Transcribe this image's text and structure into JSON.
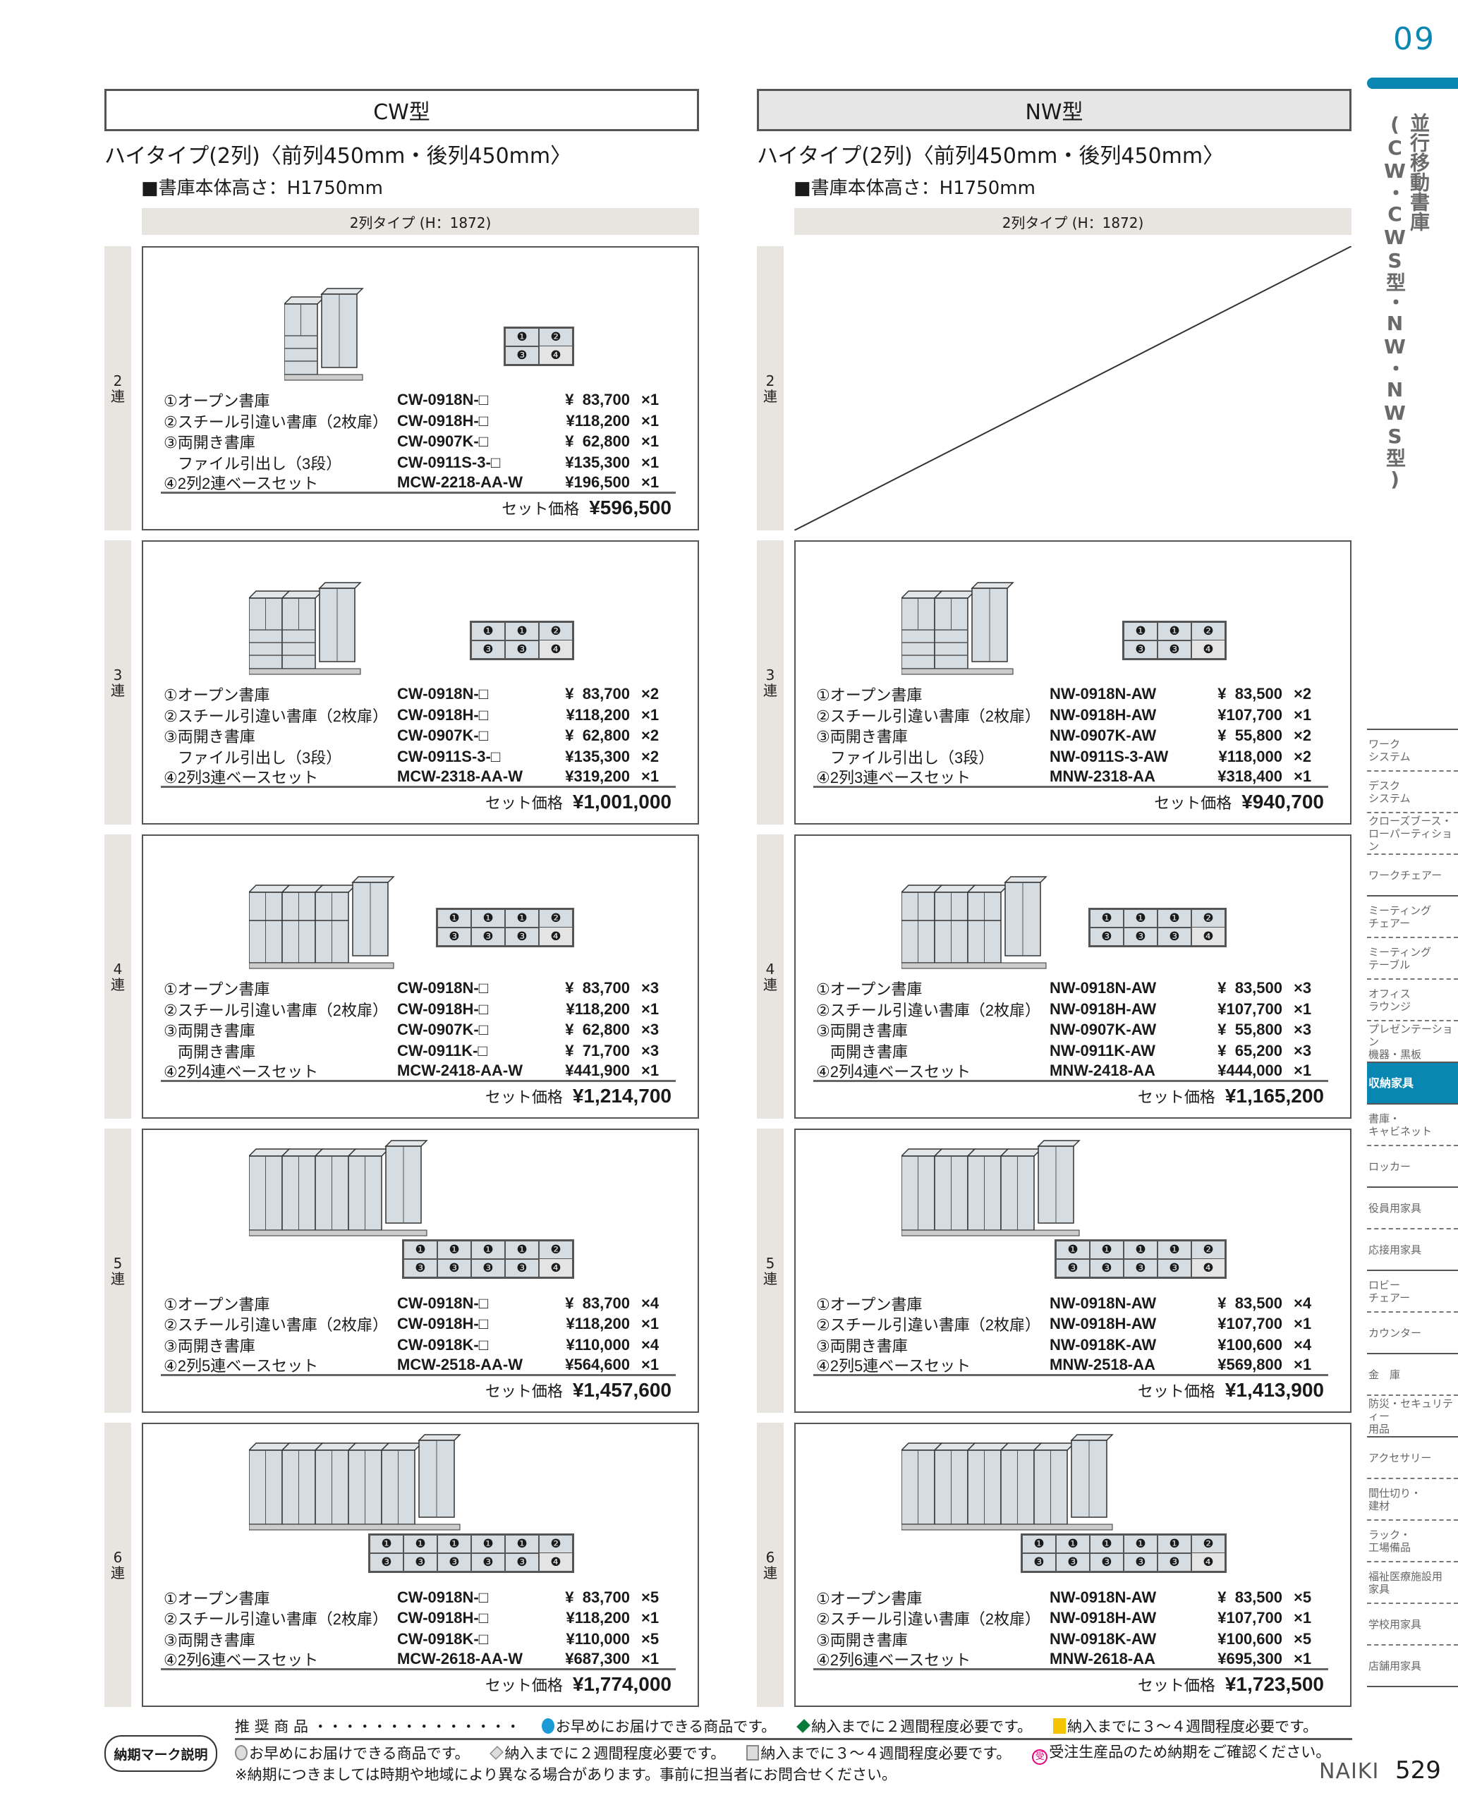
{
  "page": {
    "chapter_number": "09",
    "page_number": "529",
    "brand": "NAIKI"
  },
  "side_title": {
    "line1": "並行移動書庫",
    "line2": "(CW・CWS型・NW・NWS型)"
  },
  "sidebar": {
    "items": [
      {
        "label": "ワーク\nシステム",
        "sep": "dashed"
      },
      {
        "label": "デスク\nシステム",
        "sep": "dashed"
      },
      {
        "label": "クローズブース・\nローパーティション",
        "sep": "dashed"
      },
      {
        "label": "ワークチェアー",
        "sep": "solid"
      },
      {
        "label": "ミーティング\nチェアー",
        "sep": "dashed"
      },
      {
        "label": "ミーティング\nテーブル",
        "sep": "dashed"
      },
      {
        "label": "オフィス\nラウンジ",
        "sep": "dashed"
      },
      {
        "label": "プレゼンテーション\n機器・黒板",
        "sep": "solid"
      },
      {
        "label": "収納家具",
        "sep": "solid",
        "active": true
      },
      {
        "label": "書庫・\nキャビネット",
        "sep": "dashed"
      },
      {
        "label": "ロッカー",
        "sep": "solid"
      },
      {
        "label": "役員用家具",
        "sep": "dashed"
      },
      {
        "label": "応接用家具",
        "sep": "solid"
      },
      {
        "label": "ロビー\nチェアー",
        "sep": "dashed"
      },
      {
        "label": "カウンター",
        "sep": "solid"
      },
      {
        "label": "金　庫",
        "sep": "dashed"
      },
      {
        "label": "防災・セキュリティー\n用品",
        "sep": "solid"
      },
      {
        "label": "アクセサリー",
        "sep": "dashed"
      },
      {
        "label": "間仕切り・\n建材",
        "sep": "dashed"
      },
      {
        "label": "ラック・\n工場備品",
        "sep": "dashed"
      },
      {
        "label": "福祉医療施設用\n家具",
        "sep": "dashed"
      },
      {
        "label": "学校用家具",
        "sep": "dashed"
      },
      {
        "label": "店舗用家具",
        "sep": "solid"
      }
    ]
  },
  "grid_labels": {
    "open": "❶",
    "sliding": "❷",
    "double": "❸",
    "base": "❹"
  },
  "colors": {
    "accent": "#0a86b3",
    "strip": "#e8e4e0",
    "cabinet": "#d6dde2"
  },
  "columns": [
    {
      "header": "CW型",
      "subtitle": "ハイタイプ(2列)〈前列450mm・後列450mm〉",
      "height_note": "■書庫本体高さ：H1750mm",
      "type_bar": "2列タイプ (H：1872)",
      "rows": [
        {
          "num": "2",
          "ren": "連",
          "units": 2,
          "set_label": "セット価格",
          "set_price": "¥596,500",
          "items": [
            {
              "name": "①オープン書庫",
              "model": "CW-0918N-□",
              "price": "¥  83,700",
              "qty": "×1"
            },
            {
              "name": "②スチール引違い書庫（2枚扉）",
              "model": "CW-0918H-□",
              "price": "¥118,200",
              "qty": "×1"
            },
            {
              "name": "③両開き書庫",
              "model": "CW-0907K-□",
              "price": "¥  62,800",
              "qty": "×1"
            },
            {
              "name": "ファイル引出し（3段）",
              "model": "CW-0911S-3-□",
              "price": "¥135,300",
              "qty": "×1",
              "sub": true
            },
            {
              "name": "④2列2連ベースセット",
              "model": "MCW-2218-AA-W",
              "price": "¥196,500",
              "qty": "×1"
            }
          ]
        },
        {
          "num": "3",
          "ren": "連",
          "units": 3,
          "set_label": "セット価格",
          "set_price": "¥1,001,000",
          "items": [
            {
              "name": "①オープン書庫",
              "model": "CW-0918N-□",
              "price": "¥  83,700",
              "qty": "×2"
            },
            {
              "name": "②スチール引違い書庫（2枚扉）",
              "model": "CW-0918H-□",
              "price": "¥118,200",
              "qty": "×1"
            },
            {
              "name": "③両開き書庫",
              "model": "CW-0907K-□",
              "price": "¥  62,800",
              "qty": "×2"
            },
            {
              "name": "ファイル引出し（3段）",
              "model": "CW-0911S-3-□",
              "price": "¥135,300",
              "qty": "×2",
              "sub": true
            },
            {
              "name": "④2列3連ベースセット",
              "model": "MCW-2318-AA-W",
              "price": "¥319,200",
              "qty": "×1"
            }
          ]
        },
        {
          "num": "4",
          "ren": "連",
          "units": 4,
          "set_label": "セット価格",
          "set_price": "¥1,214,700",
          "items": [
            {
              "name": "①オープン書庫",
              "model": "CW-0918N-□",
              "price": "¥  83,700",
              "qty": "×3"
            },
            {
              "name": "②スチール引違い書庫（2枚扉）",
              "model": "CW-0918H-□",
              "price": "¥118,200",
              "qty": "×1"
            },
            {
              "name": "③両開き書庫",
              "model": "CW-0907K-□",
              "price": "¥  62,800",
              "qty": "×3"
            },
            {
              "name": "両開き書庫",
              "model": "CW-0911K-□",
              "price": "¥  71,700",
              "qty": "×3",
              "sub": true
            },
            {
              "name": "④2列4連ベースセット",
              "model": "MCW-2418-AA-W",
              "price": "¥441,900",
              "qty": "×1"
            }
          ]
        },
        {
          "num": "5",
          "ren": "連",
          "units": 5,
          "set_label": "セット価格",
          "set_price": "¥1,457,600",
          "items": [
            {
              "name": "①オープン書庫",
              "model": "CW-0918N-□",
              "price": "¥  83,700",
              "qty": "×4"
            },
            {
              "name": "②スチール引違い書庫（2枚扉）",
              "model": "CW-0918H-□",
              "price": "¥118,200",
              "qty": "×1"
            },
            {
              "name": "③両開き書庫",
              "model": "CW-0918K-□",
              "price": "¥110,000",
              "qty": "×4"
            },
            {
              "name": "④2列5連ベースセット",
              "model": "MCW-2518-AA-W",
              "price": "¥564,600",
              "qty": "×1"
            }
          ]
        },
        {
          "num": "6",
          "ren": "連",
          "units": 6,
          "set_label": "セット価格",
          "set_price": "¥1,774,000",
          "items": [
            {
              "name": "①オープン書庫",
              "model": "CW-0918N-□",
              "price": "¥  83,700",
              "qty": "×5"
            },
            {
              "name": "②スチール引違い書庫（2枚扉）",
              "model": "CW-0918H-□",
              "price": "¥118,200",
              "qty": "×1"
            },
            {
              "name": "③両開き書庫",
              "model": "CW-0918K-□",
              "price": "¥110,000",
              "qty": "×5"
            },
            {
              "name": "④2列6連ベースセット",
              "model": "MCW-2618-AA-W",
              "price": "¥687,300",
              "qty": "×1"
            }
          ]
        }
      ]
    },
    {
      "header": "NW型",
      "subtitle": "ハイタイプ(2列)〈前列450mm・後列450mm〉",
      "height_note": "■書庫本体高さ：H1750mm",
      "type_bar": "2列タイプ (H：1872)",
      "rows": [
        {
          "num": "2",
          "ren": "連",
          "units": 2,
          "empty": true,
          "items": []
        },
        {
          "num": "3",
          "ren": "連",
          "units": 3,
          "set_label": "セット価格",
          "set_price": "¥940,700",
          "items": [
            {
              "name": "①オープン書庫",
              "model": "NW-0918N-AW",
              "price": "¥  83,500",
              "qty": "×2"
            },
            {
              "name": "②スチール引違い書庫（2枚扉）",
              "model": "NW-0918H-AW",
              "price": "¥107,700",
              "qty": "×1"
            },
            {
              "name": "③両開き書庫",
              "model": "NW-0907K-AW",
              "price": "¥  55,800",
              "qty": "×2"
            },
            {
              "name": "ファイル引出し（3段）",
              "model": "NW-0911S-3-AW",
              "price": "¥118,000",
              "qty": "×2",
              "sub": true
            },
            {
              "name": "④2列3連ベースセット",
              "model": "MNW-2318-AA",
              "price": "¥318,400",
              "qty": "×1"
            }
          ]
        },
        {
          "num": "4",
          "ren": "連",
          "units": 4,
          "set_label": "セット価格",
          "set_price": "¥1,165,200",
          "items": [
            {
              "name": "①オープン書庫",
              "model": "NW-0918N-AW",
              "price": "¥  83,500",
              "qty": "×3"
            },
            {
              "name": "②スチール引違い書庫（2枚扉）",
              "model": "NW-0918H-AW",
              "price": "¥107,700",
              "qty": "×1"
            },
            {
              "name": "③両開き書庫",
              "model": "NW-0907K-AW",
              "price": "¥  55,800",
              "qty": "×3"
            },
            {
              "name": "両開き書庫",
              "model": "NW-0911K-AW",
              "price": "¥  65,200",
              "qty": "×3",
              "sub": true
            },
            {
              "name": "④2列4連ベースセット",
              "model": "MNW-2418-AA",
              "price": "¥444,000",
              "qty": "×1"
            }
          ]
        },
        {
          "num": "5",
          "ren": "連",
          "units": 5,
          "set_label": "セット価格",
          "set_price": "¥1,413,900",
          "items": [
            {
              "name": "①オープン書庫",
              "model": "NW-0918N-AW",
              "price": "¥  83,500",
              "qty": "×4"
            },
            {
              "name": "②スチール引違い書庫（2枚扉）",
              "model": "NW-0918H-AW",
              "price": "¥107,700",
              "qty": "×1"
            },
            {
              "name": "③両開き書庫",
              "model": "NW-0918K-AW",
              "price": "¥100,600",
              "qty": "×4"
            },
            {
              "name": "④2列5連ベースセット",
              "model": "MNW-2518-AA",
              "price": "¥569,800",
              "qty": "×1"
            }
          ]
        },
        {
          "num": "6",
          "ren": "連",
          "units": 6,
          "set_label": "セット価格",
          "set_price": "¥1,723,500",
          "items": [
            {
              "name": "①オープン書庫",
              "model": "NW-0918N-AW",
              "price": "¥  83,500",
              "qty": "×5"
            },
            {
              "name": "②スチール引違い書庫（2枚扉）",
              "model": "NW-0918H-AW",
              "price": "¥107,700",
              "qty": "×1"
            },
            {
              "name": "③両開き書庫",
              "model": "NW-0918K-AW",
              "price": "¥100,600",
              "qty": "×5"
            },
            {
              "name": "④2列6連ベースセット",
              "model": "MNW-2618-AA",
              "price": "¥695,300",
              "qty": "×1"
            }
          ]
        }
      ]
    }
  ],
  "footer": {
    "legend_title": "納期マーク説明",
    "recommended_label": "推 奨 商 品 ・・・・・・・・・・・・・・",
    "rec1": "お早めにお届けできる商品です。",
    "rec2": "納入までに２週間程度必要です。",
    "rec3": "納入までに３～４週間程度必要です。",
    "std1": "お早めにお届けできる商品です。",
    "std2": "納入までに２週間程度必要です。",
    "std3": "納入までに３～４週間程度必要です。",
    "std4": "受注生産品のため納期をご確認ください。",
    "order_mark": "受",
    "note": "※納期につきましては時期や地域により異なる場合があります。事前に担当者にお問合せください。",
    "colors": {
      "blue": "#1a9ad6",
      "green": "#0a7a3a",
      "yellow": "#f5c400",
      "gray": "#bdbdbd",
      "pink": "#e4007f"
    }
  }
}
